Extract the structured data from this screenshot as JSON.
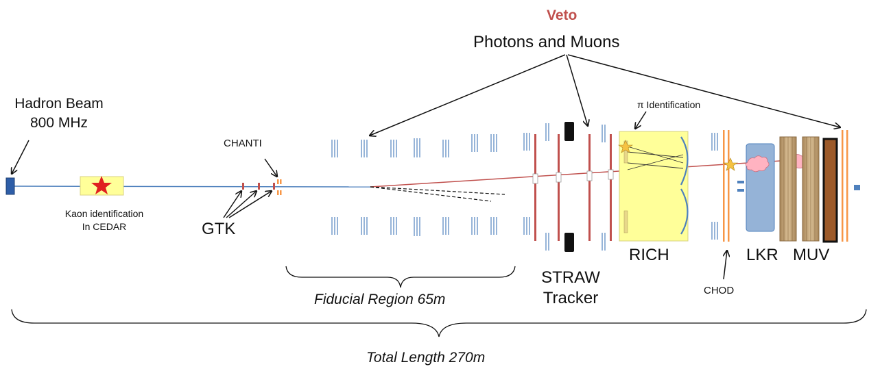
{
  "labels": {
    "veto": "Veto",
    "photons_muons": "Photons and Muons",
    "hadron_beam_line1": "Hadron Beam",
    "hadron_beam_line2": "800 MHz",
    "pi_identification": "π Identification",
    "chanti": "CHANTI",
    "kaon_id_line1": "Kaon identification",
    "kaon_id_line2": "In CEDAR",
    "gtk": "GTK",
    "rich": "RICH",
    "lkr": "LKR",
    "muv": "MUV",
    "straw_line1": "STRAW",
    "straw_line2": "Tracker",
    "chod": "CHOD",
    "fiducial": "Fiducial Region 65m",
    "total": "Total Length 270m"
  },
  "colors": {
    "beam": "#4f81bd",
    "decay": "#c0504d",
    "veto_text": "#c0504d",
    "straw": "#c0504d",
    "orange": "#f79646",
    "rich_fill": "#ffff99",
    "lkr_fill": "#95b3d7",
    "muv_fill": "#c4a57a",
    "muv_dark": "#9c5a2a",
    "cloud": "#ffb3c1",
    "star_red": "#e02020",
    "star_gold": "#f5c242"
  }
}
